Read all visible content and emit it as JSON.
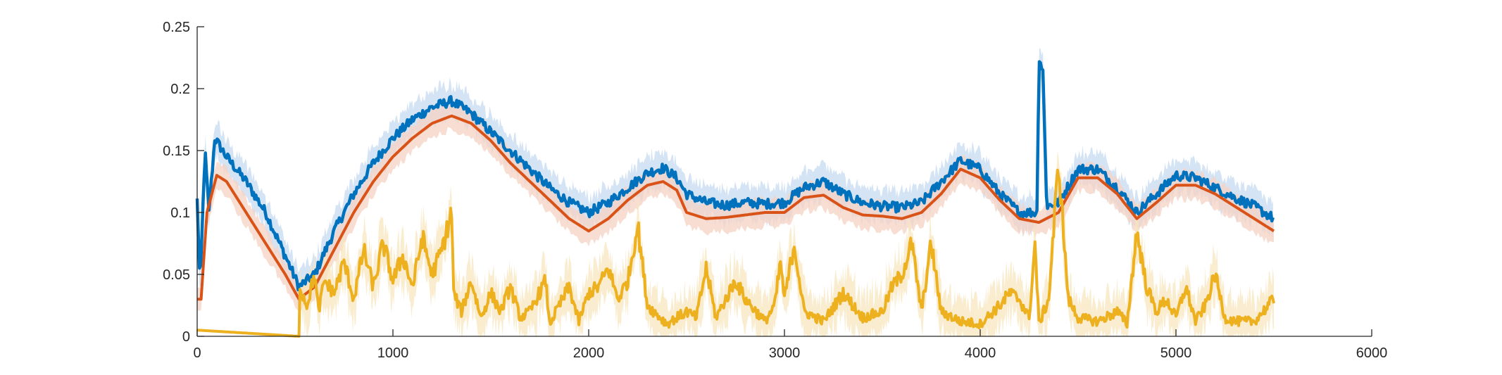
{
  "chart_data": {
    "type": "line",
    "title": "",
    "xlabel": "",
    "ylabel": "",
    "xlim": [
      0,
      6000
    ],
    "ylim": [
      0,
      0.25
    ],
    "x_ticks": [
      0,
      1000,
      2000,
      3000,
      4000,
      5000,
      6000
    ],
    "x_tick_labels": [
      "0",
      "1000",
      "2000",
      "3000",
      "4000",
      "5000",
      "6000"
    ],
    "y_ticks": [
      0,
      0.05,
      0.1,
      0.15,
      0.2,
      0.25
    ],
    "y_tick_labels": [
      "0",
      "0.05",
      "0.1",
      "0.15",
      "0.2",
      "0.25"
    ],
    "grid": false,
    "legend": "none",
    "series": [
      {
        "color": "#0072BD",
        "band_color": "#c6dbf2",
        "style": "noisy line with shaded band",
        "points": [
          [
            0,
            0.11
          ],
          [
            15,
            0.04
          ],
          [
            40,
            0.15
          ],
          [
            60,
            0.1
          ],
          [
            90,
            0.16
          ],
          [
            150,
            0.145
          ],
          [
            250,
            0.125
          ],
          [
            350,
            0.1
          ],
          [
            450,
            0.065
          ],
          [
            520,
            0.04
          ],
          [
            600,
            0.05
          ],
          [
            700,
            0.085
          ],
          [
            800,
            0.115
          ],
          [
            900,
            0.14
          ],
          [
            1000,
            0.16
          ],
          [
            1100,
            0.175
          ],
          [
            1200,
            0.185
          ],
          [
            1300,
            0.19
          ],
          [
            1400,
            0.18
          ],
          [
            1500,
            0.165
          ],
          [
            1600,
            0.15
          ],
          [
            1700,
            0.135
          ],
          [
            1800,
            0.12
          ],
          [
            1900,
            0.108
          ],
          [
            2000,
            0.1
          ],
          [
            2100,
            0.108
          ],
          [
            2200,
            0.12
          ],
          [
            2300,
            0.132
          ],
          [
            2380,
            0.136
          ],
          [
            2450,
            0.128
          ],
          [
            2500,
            0.115
          ],
          [
            2600,
            0.108
          ],
          [
            2700,
            0.106
          ],
          [
            2800,
            0.108
          ],
          [
            2900,
            0.107
          ],
          [
            3000,
            0.108
          ],
          [
            3100,
            0.12
          ],
          [
            3200,
            0.125
          ],
          [
            3300,
            0.115
          ],
          [
            3400,
            0.108
          ],
          [
            3500,
            0.105
          ],
          [
            3600,
            0.104
          ],
          [
            3700,
            0.108
          ],
          [
            3800,
            0.125
          ],
          [
            3900,
            0.142
          ],
          [
            4000,
            0.135
          ],
          [
            4100,
            0.115
          ],
          [
            4200,
            0.1
          ],
          [
            4290,
            0.1
          ],
          [
            4300,
            0.225
          ],
          [
            4320,
            0.215
          ],
          [
            4340,
            0.105
          ],
          [
            4400,
            0.108
          ],
          [
            4500,
            0.135
          ],
          [
            4600,
            0.135
          ],
          [
            4700,
            0.12
          ],
          [
            4800,
            0.1
          ],
          [
            4900,
            0.115
          ],
          [
            5000,
            0.13
          ],
          [
            5100,
            0.128
          ],
          [
            5200,
            0.12
          ],
          [
            5300,
            0.112
          ],
          [
            5400,
            0.105
          ],
          [
            5500,
            0.095
          ]
        ]
      },
      {
        "color": "#D95319",
        "band_color": "#f6d3c3",
        "style": "smooth line with shaded band",
        "points": [
          [
            0,
            0.03
          ],
          [
            20,
            0.03
          ],
          [
            50,
            0.1
          ],
          [
            100,
            0.13
          ],
          [
            150,
            0.125
          ],
          [
            250,
            0.1
          ],
          [
            350,
            0.075
          ],
          [
            450,
            0.05
          ],
          [
            520,
            0.03
          ],
          [
            600,
            0.04
          ],
          [
            700,
            0.07
          ],
          [
            800,
            0.1
          ],
          [
            900,
            0.125
          ],
          [
            1000,
            0.145
          ],
          [
            1100,
            0.16
          ],
          [
            1200,
            0.172
          ],
          [
            1300,
            0.178
          ],
          [
            1400,
            0.172
          ],
          [
            1500,
            0.158
          ],
          [
            1600,
            0.14
          ],
          [
            1700,
            0.125
          ],
          [
            1800,
            0.11
          ],
          [
            1900,
            0.095
          ],
          [
            2000,
            0.085
          ],
          [
            2100,
            0.095
          ],
          [
            2200,
            0.11
          ],
          [
            2300,
            0.122
          ],
          [
            2380,
            0.125
          ],
          [
            2450,
            0.118
          ],
          [
            2500,
            0.1
          ],
          [
            2600,
            0.095
          ],
          [
            2700,
            0.096
          ],
          [
            2800,
            0.098
          ],
          [
            2900,
            0.1
          ],
          [
            3000,
            0.1
          ],
          [
            3100,
            0.112
          ],
          [
            3200,
            0.114
          ],
          [
            3300,
            0.104
          ],
          [
            3400,
            0.098
          ],
          [
            3500,
            0.097
          ],
          [
            3600,
            0.095
          ],
          [
            3700,
            0.1
          ],
          [
            3800,
            0.115
          ],
          [
            3900,
            0.135
          ],
          [
            4000,
            0.128
          ],
          [
            4100,
            0.11
          ],
          [
            4200,
            0.095
          ],
          [
            4300,
            0.092
          ],
          [
            4400,
            0.1
          ],
          [
            4500,
            0.128
          ],
          [
            4600,
            0.128
          ],
          [
            4700,
            0.115
          ],
          [
            4800,
            0.095
          ],
          [
            4900,
            0.108
          ],
          [
            5000,
            0.122
          ],
          [
            5100,
            0.122
          ],
          [
            5200,
            0.115
          ],
          [
            5300,
            0.105
          ],
          [
            5400,
            0.095
          ],
          [
            5500,
            0.085
          ]
        ]
      },
      {
        "color": "#EDB120",
        "band_color": "#f8e6bd",
        "style": "spiky line with shaded band",
        "points": [
          [
            0,
            0.005
          ],
          [
            520,
            0.0
          ],
          [
            525,
            0.04
          ],
          [
            560,
            0.025
          ],
          [
            600,
            0.05
          ],
          [
            620,
            0.02
          ],
          [
            650,
            0.045
          ],
          [
            700,
            0.035
          ],
          [
            750,
            0.06
          ],
          [
            800,
            0.03
          ],
          [
            850,
            0.07
          ],
          [
            900,
            0.04
          ],
          [
            950,
            0.075
          ],
          [
            1000,
            0.045
          ],
          [
            1050,
            0.065
          ],
          [
            1100,
            0.04
          ],
          [
            1150,
            0.08
          ],
          [
            1200,
            0.05
          ],
          [
            1250,
            0.07
          ],
          [
            1300,
            0.1
          ],
          [
            1310,
            0.035
          ],
          [
            1350,
            0.02
          ],
          [
            1400,
            0.045
          ],
          [
            1450,
            0.015
          ],
          [
            1500,
            0.035
          ],
          [
            1550,
            0.02
          ],
          [
            1600,
            0.04
          ],
          [
            1650,
            0.015
          ],
          [
            1700,
            0.02
          ],
          [
            1780,
            0.045
          ],
          [
            1800,
            0.01
          ],
          [
            1900,
            0.04
          ],
          [
            1950,
            0.012
          ],
          [
            2000,
            0.035
          ],
          [
            2050,
            0.04
          ],
          [
            2100,
            0.055
          ],
          [
            2150,
            0.03
          ],
          [
            2200,
            0.045
          ],
          [
            2250,
            0.09
          ],
          [
            2300,
            0.025
          ],
          [
            2400,
            0.01
          ],
          [
            2500,
            0.02
          ],
          [
            2550,
            0.015
          ],
          [
            2600,
            0.055
          ],
          [
            2650,
            0.015
          ],
          [
            2700,
            0.03
          ],
          [
            2750,
            0.045
          ],
          [
            2800,
            0.03
          ],
          [
            2900,
            0.012
          ],
          [
            2950,
            0.025
          ],
          [
            2980,
            0.06
          ],
          [
            3000,
            0.03
          ],
          [
            3050,
            0.075
          ],
          [
            3100,
            0.02
          ],
          [
            3200,
            0.012
          ],
          [
            3300,
            0.035
          ],
          [
            3400,
            0.015
          ],
          [
            3500,
            0.02
          ],
          [
            3550,
            0.04
          ],
          [
            3600,
            0.05
          ],
          [
            3650,
            0.075
          ],
          [
            3700,
            0.02
          ],
          [
            3750,
            0.075
          ],
          [
            3800,
            0.02
          ],
          [
            3900,
            0.012
          ],
          [
            4000,
            0.01
          ],
          [
            4100,
            0.025
          ],
          [
            4150,
            0.035
          ],
          [
            4200,
            0.03
          ],
          [
            4250,
            0.015
          ],
          [
            4280,
            0.075
          ],
          [
            4300,
            0.01
          ],
          [
            4350,
            0.03
          ],
          [
            4400,
            0.14
          ],
          [
            4450,
            0.03
          ],
          [
            4500,
            0.015
          ],
          [
            4600,
            0.012
          ],
          [
            4700,
            0.02
          ],
          [
            4750,
            0.01
          ],
          [
            4800,
            0.085
          ],
          [
            4850,
            0.04
          ],
          [
            4900,
            0.02
          ],
          [
            4950,
            0.03
          ],
          [
            5000,
            0.015
          ],
          [
            5050,
            0.04
          ],
          [
            5100,
            0.012
          ],
          [
            5150,
            0.025
          ],
          [
            5200,
            0.05
          ],
          [
            5250,
            0.015
          ],
          [
            5300,
            0.012
          ],
          [
            5400,
            0.012
          ],
          [
            5500,
            0.03
          ]
        ]
      }
    ]
  }
}
